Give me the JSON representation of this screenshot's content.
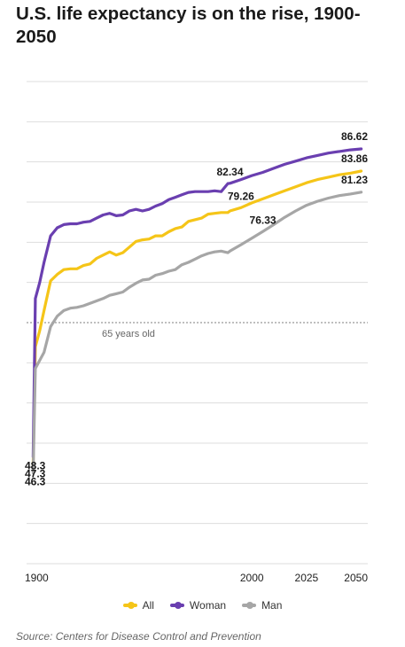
{
  "title": "U.S. life expectancy is on the rise, 1900-2050",
  "source": "Source: Centers for Disease Control and Prevention",
  "colors": {
    "all": "#f5c518",
    "woman": "#6a3fb0",
    "man": "#a6a6a6",
    "grid": "#dddddd",
    "axis": "#333333",
    "reference": "#555555"
  },
  "chart_data": {
    "type": "line",
    "xlim": [
      1897,
      2053
    ],
    "ylim": [
      35,
      95
    ],
    "x_ticks": [
      "1900",
      "2000",
      "2025",
      "2050"
    ],
    "grid": true,
    "legend_position": "bottom-center",
    "reference_line": {
      "y": 65,
      "label": "65 years old"
    },
    "series": [
      {
        "name": "All",
        "color": "#f5c518",
        "points": [
          [
            1900,
            47.3
          ],
          [
            1901,
            62.0
          ],
          [
            1903,
            64.0
          ],
          [
            1905,
            66.5
          ],
          [
            1908,
            70.2
          ],
          [
            1911,
            71.0
          ],
          [
            1914,
            71.6
          ],
          [
            1917,
            71.7
          ],
          [
            1920,
            71.7
          ],
          [
            1923,
            72.1
          ],
          [
            1926,
            72.3
          ],
          [
            1929,
            73.0
          ],
          [
            1932,
            73.4
          ],
          [
            1935,
            73.8
          ],
          [
            1938,
            73.4
          ],
          [
            1941,
            73.7
          ],
          [
            1944,
            74.4
          ],
          [
            1947,
            75.1
          ],
          [
            1950,
            75.3
          ],
          [
            1953,
            75.4
          ],
          [
            1956,
            75.8
          ],
          [
            1959,
            75.8
          ],
          [
            1962,
            76.3
          ],
          [
            1965,
            76.7
          ],
          [
            1968,
            76.9
          ],
          [
            1971,
            77.6
          ],
          [
            1974,
            77.8
          ],
          [
            1977,
            78.0
          ],
          [
            1980,
            78.5
          ],
          [
            1983,
            78.6
          ],
          [
            1986,
            78.7
          ],
          [
            1989,
            78.7
          ],
          [
            1990,
            78.9
          ],
          [
            1995,
            79.3
          ],
          [
            2000,
            79.9
          ],
          [
            2005,
            80.4
          ],
          [
            2010,
            80.9
          ],
          [
            2015,
            81.4
          ],
          [
            2020,
            81.9
          ],
          [
            2025,
            82.4
          ],
          [
            2030,
            82.8
          ],
          [
            2035,
            83.1
          ],
          [
            2040,
            83.4
          ],
          [
            2045,
            83.6
          ],
          [
            2050,
            83.86
          ]
        ]
      },
      {
        "name": "Woman",
        "color": "#6a3fb0",
        "points": [
          [
            1900,
            48.3
          ],
          [
            1901,
            68.0
          ],
          [
            1903,
            70.0
          ],
          [
            1905,
            72.5
          ],
          [
            1908,
            75.8
          ],
          [
            1911,
            76.8
          ],
          [
            1914,
            77.2
          ],
          [
            1917,
            77.3
          ],
          [
            1920,
            77.3
          ],
          [
            1923,
            77.5
          ],
          [
            1926,
            77.6
          ],
          [
            1929,
            78.0
          ],
          [
            1932,
            78.4
          ],
          [
            1935,
            78.6
          ],
          [
            1938,
            78.3
          ],
          [
            1941,
            78.4
          ],
          [
            1944,
            78.9
          ],
          [
            1947,
            79.1
          ],
          [
            1950,
            78.9
          ],
          [
            1953,
            79.1
          ],
          [
            1956,
            79.5
          ],
          [
            1959,
            79.8
          ],
          [
            1962,
            80.3
          ],
          [
            1965,
            80.6
          ],
          [
            1968,
            80.9
          ],
          [
            1971,
            81.2
          ],
          [
            1974,
            81.3
          ],
          [
            1977,
            81.3
          ],
          [
            1980,
            81.3
          ],
          [
            1983,
            81.4
          ],
          [
            1986,
            81.3
          ],
          [
            1989,
            82.3
          ],
          [
            1990,
            82.34
          ],
          [
            1995,
            82.8
          ],
          [
            2000,
            83.3
          ],
          [
            2005,
            83.7
          ],
          [
            2010,
            84.2
          ],
          [
            2015,
            84.7
          ],
          [
            2020,
            85.1
          ],
          [
            2025,
            85.5
          ],
          [
            2030,
            85.8
          ],
          [
            2035,
            86.1
          ],
          [
            2040,
            86.3
          ],
          [
            2045,
            86.5
          ],
          [
            2050,
            86.62
          ]
        ]
      },
      {
        "name": "Man",
        "color": "#a6a6a6",
        "points": [
          [
            1900,
            46.3
          ],
          [
            1901,
            59.3
          ],
          [
            1903,
            60.3
          ],
          [
            1905,
            61.3
          ],
          [
            1908,
            64.5
          ],
          [
            1911,
            65.8
          ],
          [
            1914,
            66.5
          ],
          [
            1917,
            66.8
          ],
          [
            1920,
            66.9
          ],
          [
            1923,
            67.1
          ],
          [
            1926,
            67.4
          ],
          [
            1929,
            67.7
          ],
          [
            1932,
            68.0
          ],
          [
            1935,
            68.4
          ],
          [
            1938,
            68.6
          ],
          [
            1941,
            68.8
          ],
          [
            1944,
            69.4
          ],
          [
            1947,
            69.9
          ],
          [
            1950,
            70.3
          ],
          [
            1953,
            70.4
          ],
          [
            1956,
            70.9
          ],
          [
            1959,
            71.1
          ],
          [
            1962,
            71.4
          ],
          [
            1965,
            71.6
          ],
          [
            1968,
            72.2
          ],
          [
            1971,
            72.5
          ],
          [
            1974,
            72.9
          ],
          [
            1977,
            73.3
          ],
          [
            1980,
            73.6
          ],
          [
            1983,
            73.8
          ],
          [
            1986,
            73.9
          ],
          [
            1989,
            73.7
          ],
          [
            1990,
            73.9
          ],
          [
            1995,
            74.7
          ],
          [
            2000,
            75.5
          ],
          [
            2005,
            76.33
          ],
          [
            2010,
            77.2
          ],
          [
            2015,
            78.1
          ],
          [
            2020,
            78.9
          ],
          [
            2025,
            79.6
          ],
          [
            2030,
            80.1
          ],
          [
            2035,
            80.5
          ],
          [
            2040,
            80.8
          ],
          [
            2045,
            81.0
          ],
          [
            2050,
            81.23
          ]
        ]
      }
    ],
    "data_labels": [
      {
        "text": "86.62",
        "series": "Woman",
        "x": 2050,
        "y": 86.62
      },
      {
        "text": "83.86",
        "series": "All",
        "x": 2050,
        "y": 83.86
      },
      {
        "text": "81.23",
        "series": "Man",
        "x": 2050,
        "y": 81.23
      },
      {
        "text": "82.34",
        "series": "Woman",
        "x": 1990,
        "y": 82.34
      },
      {
        "text": "79.26",
        "series": "All",
        "x": 1995,
        "y": 79.26
      },
      {
        "text": "76.33",
        "series": "Man",
        "x": 2005,
        "y": 76.33
      },
      {
        "text": "48.3",
        "series": "Woman",
        "x": 1900,
        "y": 48.3
      },
      {
        "text": "47.3",
        "series": "All",
        "x": 1900,
        "y": 47.3
      },
      {
        "text": "46.3",
        "series": "Man",
        "x": 1900,
        "y": 46.3
      }
    ]
  }
}
